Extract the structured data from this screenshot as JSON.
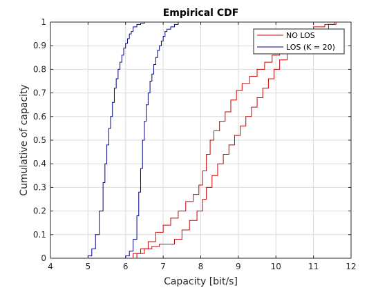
{
  "chart_data": {
    "type": "line",
    "title": "Empirical CDF",
    "xlabel": "Capacity [bit/s]",
    "ylabel": "Cumulative of capacity",
    "xlim": [
      4,
      12
    ],
    "ylim": [
      0,
      1
    ],
    "x_ticks": [
      "4",
      "5",
      "6",
      "7",
      "8",
      "9",
      "10",
      "11",
      "12"
    ],
    "y_ticks": [
      "0",
      "0.1",
      "0.2",
      "0.3",
      "0.4",
      "0.5",
      "0.6",
      "0.7",
      "0.8",
      "0.9",
      "1"
    ],
    "grid": true,
    "legend_position": "top-right",
    "series": [
      {
        "name": "NO LOS",
        "color": "#cc0000",
        "x": [
          5.9,
          6.2,
          6.4,
          6.6,
          6.8,
          7.0,
          7.2,
          7.4,
          7.6,
          7.8,
          7.95,
          8.05,
          8.15,
          8.25,
          8.35,
          8.5,
          8.65,
          8.8,
          8.95,
          9.1,
          9.3,
          9.5,
          9.7,
          9.9,
          10.1,
          10.4,
          10.7,
          11.0,
          11.3,
          11.55
        ],
        "y": [
          0.0,
          0.02,
          0.04,
          0.07,
          0.11,
          0.14,
          0.17,
          0.2,
          0.24,
          0.27,
          0.31,
          0.37,
          0.44,
          0.5,
          0.54,
          0.58,
          0.62,
          0.67,
          0.71,
          0.74,
          0.77,
          0.8,
          0.83,
          0.86,
          0.89,
          0.93,
          0.96,
          0.98,
          0.99,
          1.0
        ]
      },
      {
        "name": "",
        "color": "#cc0000",
        "x": [
          6.1,
          6.3,
          6.5,
          6.7,
          6.9,
          7.1,
          7.3,
          7.5,
          7.7,
          7.9,
          8.05,
          8.15,
          8.3,
          8.45,
          8.6,
          8.75,
          8.9,
          9.05,
          9.2,
          9.35,
          9.5,
          9.65,
          9.8,
          9.95,
          10.1,
          10.3,
          10.5,
          10.8,
          11.1,
          11.4,
          11.6
        ],
        "y": [
          0.0,
          0.02,
          0.04,
          0.05,
          0.06,
          0.06,
          0.08,
          0.12,
          0.16,
          0.2,
          0.25,
          0.3,
          0.35,
          0.4,
          0.44,
          0.48,
          0.52,
          0.56,
          0.6,
          0.64,
          0.68,
          0.72,
          0.76,
          0.8,
          0.84,
          0.88,
          0.91,
          0.94,
          0.97,
          0.99,
          1.0
        ]
      },
      {
        "name": "LOS (K = 20)",
        "color": "#00008b",
        "x": [
          4.7,
          5.0,
          5.1,
          5.2,
          5.3,
          5.4,
          5.45,
          5.5,
          5.55,
          5.6,
          5.65,
          5.7,
          5.75,
          5.8,
          5.85,
          5.9,
          5.95,
          6.0,
          6.05,
          6.1,
          6.15,
          6.2,
          6.3,
          6.4,
          6.5,
          6.6
        ],
        "y": [
          0.0,
          0.01,
          0.04,
          0.1,
          0.2,
          0.32,
          0.4,
          0.48,
          0.55,
          0.6,
          0.66,
          0.72,
          0.76,
          0.8,
          0.83,
          0.86,
          0.89,
          0.91,
          0.93,
          0.95,
          0.96,
          0.98,
          0.99,
          0.995,
          1.0,
          1.0
        ]
      },
      {
        "name": "",
        "color": "#00008b",
        "x": [
          5.8,
          6.0,
          6.1,
          6.2,
          6.3,
          6.35,
          6.4,
          6.45,
          6.5,
          6.55,
          6.6,
          6.65,
          6.7,
          6.75,
          6.8,
          6.85,
          6.9,
          6.95,
          7.0,
          7.05,
          7.1,
          7.2,
          7.3,
          7.4
        ],
        "y": [
          0.0,
          0.01,
          0.03,
          0.08,
          0.18,
          0.28,
          0.38,
          0.5,
          0.58,
          0.65,
          0.7,
          0.75,
          0.78,
          0.82,
          0.85,
          0.88,
          0.9,
          0.92,
          0.94,
          0.96,
          0.97,
          0.98,
          0.99,
          1.0
        ]
      }
    ]
  }
}
